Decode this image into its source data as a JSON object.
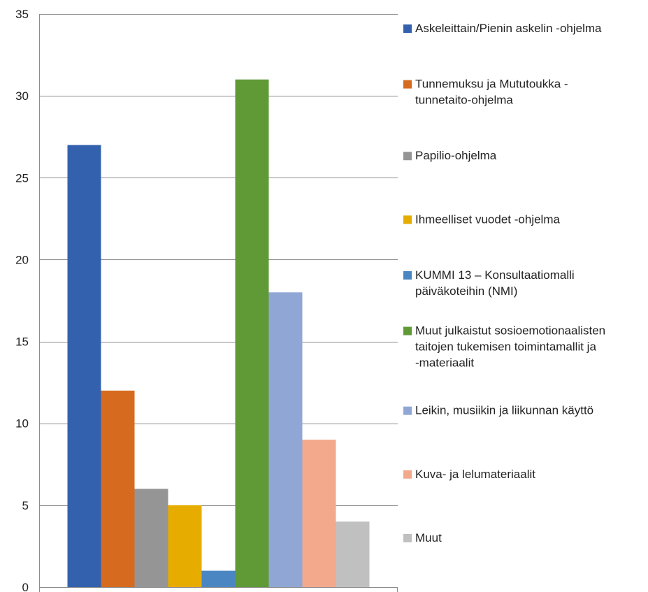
{
  "chart_data": {
    "type": "bar",
    "title": "",
    "xlabel": "",
    "ylabel": "",
    "ylim": [
      0,
      35
    ],
    "yticks": [
      0,
      5,
      10,
      15,
      20,
      25,
      30,
      35
    ],
    "grid": true,
    "legend_position": "right",
    "series": [
      {
        "name": "Askeleittain/Pienin askelin -ohjelma",
        "value": 27,
        "color": "#3461AE",
        "legend_lines": [
          "Askeleittain/Pienin askelin -ohjelma"
        ]
      },
      {
        "name": "Tunnemuksu ja Mututoukka -tunnetaito-ohjelma",
        "value": 12,
        "color": "#D66B20",
        "legend_lines": [
          "Tunnemuksu ja Mututoukka -",
          "tunnetaito-ohjelma"
        ]
      },
      {
        "name": "Papilio-ohjelma",
        "value": 6,
        "color": "#959595",
        "legend_lines": [
          "Papilio-ohjelma"
        ]
      },
      {
        "name": "Ihmeelliset vuodet -ohjelma",
        "value": 5,
        "color": "#E6AC00",
        "legend_lines": [
          "Ihmeelliset vuodet -ohjelma"
        ]
      },
      {
        "name": "KUMMI 13 – Konsultaatiomalli päiväkoteihin (NMI)",
        "value": 1,
        "color": "#4A86C2",
        "legend_lines": [
          "KUMMI 13 – Konsultaatiomalli",
          "päiväkoteihin (NMI)"
        ]
      },
      {
        "name": "Muut julkaistut sosioemotionaalisten taitojen tukemisen toimintamallit ja -materiaalit",
        "value": 31,
        "color": "#5F9A37",
        "legend_lines": [
          "Muut julkaistut sosioemotionaalisten",
          "taitojen tukemisen toimintamallit ja",
          "-materiaalit"
        ]
      },
      {
        "name": "Leikin, musiikin ja liikunnan käyttö",
        "value": 18,
        "color": "#90A7D6",
        "legend_lines": [
          "Leikin, musiikin ja liikunnan käyttö"
        ]
      },
      {
        "name": "Kuva- ja lelumateriaalit",
        "value": 9,
        "color": "#F2A98C",
        "legend_lines": [
          "Kuva- ja lelumateriaalit"
        ]
      },
      {
        "name": "Muut",
        "value": 4,
        "color": "#C0C0C0",
        "legend_lines": [
          "Muut"
        ]
      }
    ]
  }
}
